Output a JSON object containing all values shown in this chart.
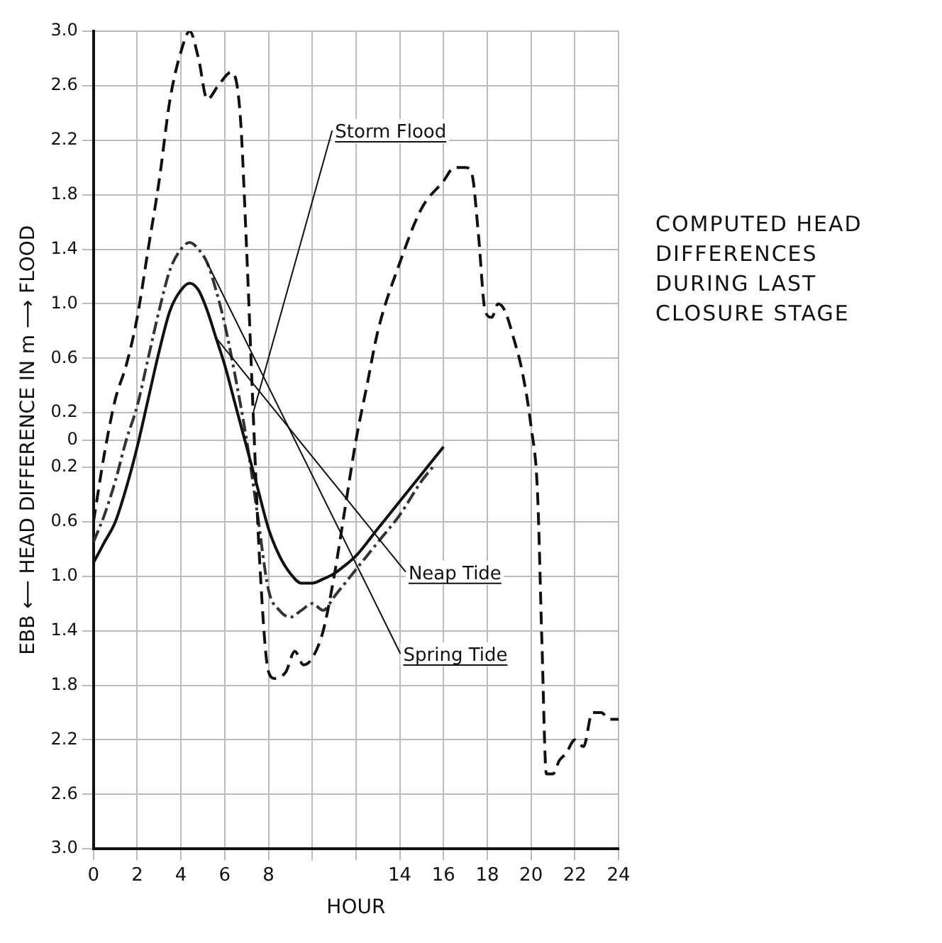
{
  "chart_data": {
    "type": "line",
    "title": "COMPUTED HEAD DIFFERENCES DURING LAST CLOSURE STAGE",
    "xlabel": "HOUR",
    "ylabel": "EBB ⟵ HEAD DIFFERENCE IN m ⟶ FLOOD",
    "xlim": [
      0,
      24
    ],
    "xticks": [
      0,
      2,
      4,
      6,
      8,
      {
        "value": 10,
        "label": null
      },
      {
        "value": 12,
        "label": null
      },
      14,
      16,
      18,
      20,
      22,
      24
    ],
    "ylim": [
      -3,
      3
    ],
    "yticks": [
      {
        "value": -3,
        "label": "3.0"
      },
      {
        "value": -2.6,
        "label": "2.6"
      },
      {
        "value": -2.2,
        "label": "2.2"
      },
      {
        "value": -1.8,
        "label": "1.8"
      },
      {
        "value": -1.4,
        "label": "1.4"
      },
      {
        "value": -1,
        "label": "1.0"
      },
      {
        "value": -0.6,
        "label": "0.6"
      },
      {
        "value": -0.2,
        "label": "0.2"
      },
      0,
      0.2,
      0.6,
      {
        "value": 1,
        "label": "1.0"
      },
      1.4,
      1.8,
      2.2,
      2.6,
      {
        "value": 3,
        "label": "3.0"
      }
    ],
    "grid": true,
    "marker": "none",
    "series": [
      {
        "name": "Storm Flood",
        "color": "#111111",
        "line_style": "dashed",
        "x": [
          0,
          0.5,
          1,
          1.5,
          2,
          2.5,
          3,
          3.5,
          4,
          4.4,
          4.8,
          5.2,
          5.7,
          6.3,
          6.7,
          7,
          7.3,
          7.6,
          8,
          8.3,
          8.8,
          9.2,
          9.6,
          10,
          10.5,
          11,
          11.5,
          12,
          12.5,
          13,
          14,
          15,
          16,
          16.5,
          17,
          17.3,
          17.6,
          17.9,
          18.2,
          18.5,
          18.8,
          19.2,
          19.6,
          20,
          20.3,
          20.5,
          20.7,
          21,
          21.3,
          21.6,
          22,
          22.4,
          22.8,
          23.2,
          23.6,
          24
        ],
        "values": [
          -0.6,
          -0.1,
          0.3,
          0.55,
          0.9,
          1.4,
          1.9,
          2.5,
          2.85,
          3.0,
          2.8,
          2.5,
          2.6,
          2.7,
          2.4,
          1.4,
          0.2,
          -0.9,
          -1.7,
          -1.75,
          -1.7,
          -1.55,
          -1.65,
          -1.6,
          -1.4,
          -1.0,
          -0.5,
          0.0,
          0.4,
          0.8,
          1.3,
          1.7,
          1.9,
          2.0,
          2.0,
          1.95,
          1.5,
          0.95,
          0.9,
          1.0,
          0.95,
          0.75,
          0.5,
          0.1,
          -0.4,
          -1.5,
          -2.45,
          -2.45,
          -2.35,
          -2.3,
          -2.2,
          -2.25,
          -2.0,
          -2.0,
          -2.05,
          -2.05
        ]
      },
      {
        "name": "Neap Tide",
        "color": "#111111",
        "line_style": "solid",
        "x": [
          0,
          0.5,
          1,
          1.5,
          2,
          2.5,
          3,
          3.5,
          4,
          4.4,
          4.8,
          5.2,
          5.6,
          6,
          6.5,
          7,
          7.5,
          8,
          8.5,
          9,
          9.5,
          10,
          10.5,
          11,
          11.5,
          12,
          13,
          14,
          15,
          16
        ],
        "values": [
          -0.9,
          -0.75,
          -0.6,
          -0.35,
          -0.05,
          0.3,
          0.65,
          0.95,
          1.1,
          1.15,
          1.1,
          0.95,
          0.75,
          0.55,
          0.25,
          -0.05,
          -0.35,
          -0.65,
          -0.85,
          -0.98,
          -1.05,
          -1.05,
          -1.02,
          -0.98,
          -0.92,
          -0.85,
          -0.65,
          -0.45,
          -0.25,
          -0.05
        ]
      },
      {
        "name": "Spring Tide",
        "color": "#333333",
        "line_style": "dotted",
        "x": [
          0,
          0.5,
          1,
          1.5,
          2,
          2.5,
          3,
          3.5,
          4,
          4.4,
          4.8,
          5.2,
          5.6,
          6,
          6.5,
          7,
          7.5,
          8,
          8.5,
          9,
          9.5,
          10,
          10.5,
          11,
          11.5,
          12,
          13,
          14,
          15,
          15.5
        ],
        "values": [
          -0.75,
          -0.55,
          -0.3,
          0.0,
          0.25,
          0.6,
          0.95,
          1.25,
          1.4,
          1.45,
          1.4,
          1.3,
          1.1,
          0.85,
          0.45,
          0.0,
          -0.55,
          -1.1,
          -1.25,
          -1.3,
          -1.25,
          -1.2,
          -1.25,
          -1.15,
          -1.05,
          -0.95,
          -0.75,
          -0.55,
          -0.3,
          -0.2
        ]
      }
    ]
  }
}
